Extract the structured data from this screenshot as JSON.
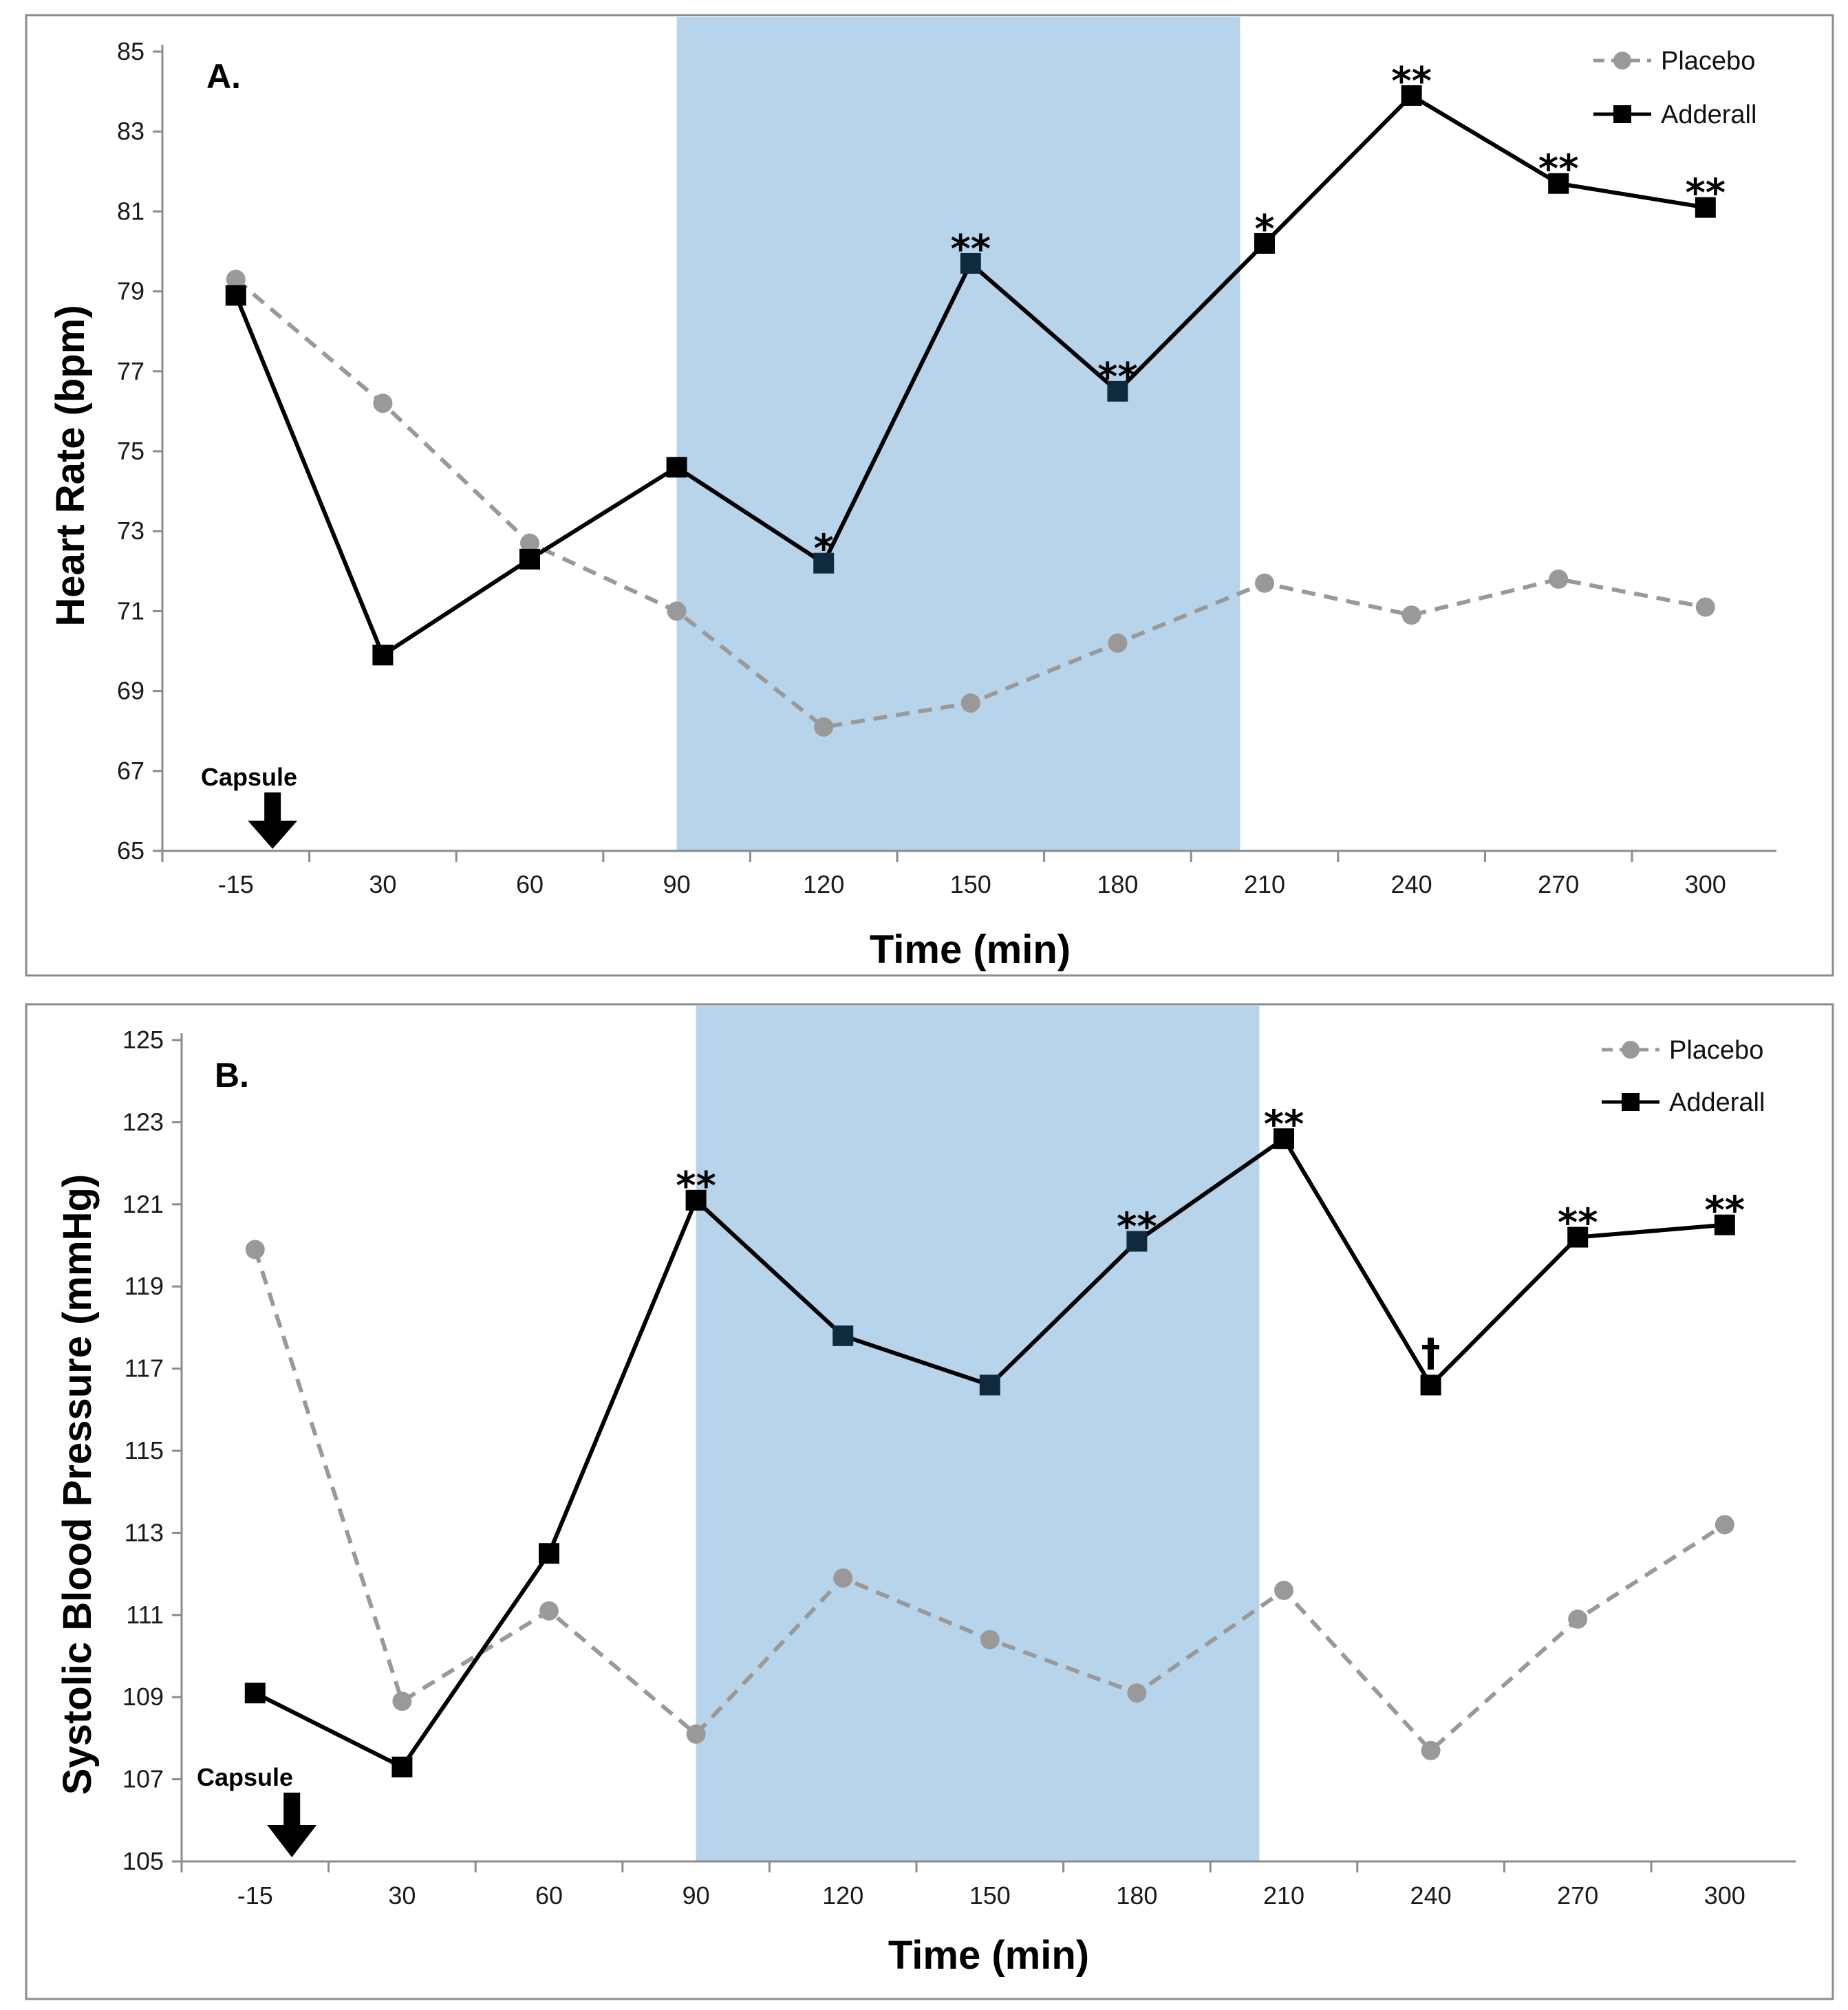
{
  "chart_data": [
    {
      "type": "line",
      "panel_label": "A.",
      "xlabel": "Time (min)",
      "ylabel": "Heart Rate (bpm)",
      "categories": [
        "-15",
        "30",
        "60",
        "90",
        "120",
        "150",
        "180",
        "210",
        "240",
        "270",
        "300"
      ],
      "ylim": [
        65,
        85
      ],
      "yticks": [
        65,
        67,
        69,
        71,
        73,
        75,
        77,
        79,
        81,
        83,
        85
      ],
      "shaded_region": [
        90,
        205
      ],
      "series": [
        {
          "name": "Placebo",
          "color": "#999999",
          "style": "dashed",
          "marker": "circle",
          "values": [
            79.3,
            76.2,
            72.7,
            71.0,
            68.1,
            68.7,
            70.2,
            71.7,
            70.9,
            71.8,
            71.1
          ]
        },
        {
          "name": "Adderall",
          "color": "#000000",
          "style": "solid",
          "marker": "square",
          "values": [
            78.9,
            69.9,
            72.3,
            74.6,
            72.2,
            79.7,
            76.5,
            80.2,
            83.9,
            81.7,
            81.1
          ]
        }
      ],
      "significance": [
        "",
        "",
        "",
        "",
        "*",
        "**",
        "**",
        "*",
        "**",
        "**",
        "**"
      ],
      "capsule_label": "Capsule",
      "capsule_x": 0
    },
    {
      "type": "line",
      "panel_label": "B.",
      "xlabel": "Time (min)",
      "ylabel": "Systolic Blood Pressure (mmHg)",
      "categories": [
        "-15",
        "30",
        "60",
        "90",
        "120",
        "150",
        "180",
        "210",
        "240",
        "270",
        "300"
      ],
      "ylim": [
        105,
        125
      ],
      "yticks": [
        105,
        107,
        109,
        111,
        113,
        115,
        117,
        119,
        121,
        123,
        125
      ],
      "shaded_region": [
        90,
        205
      ],
      "series": [
        {
          "name": "Placebo",
          "color": "#999999",
          "style": "dashed",
          "marker": "circle",
          "values": [
            119.9,
            108.9,
            111.1,
            108.1,
            111.9,
            110.4,
            109.1,
            111.6,
            107.7,
            110.9,
            113.2
          ]
        },
        {
          "name": "Adderall",
          "color": "#000000",
          "style": "solid",
          "marker": "square",
          "values": [
            109.1,
            107.3,
            112.5,
            121.1,
            117.8,
            116.6,
            120.1,
            122.6,
            116.6,
            120.2,
            120.5
          ]
        }
      ],
      "significance": [
        "",
        "",
        "",
        "**",
        "",
        "",
        "**",
        "**",
        "†",
        "**",
        "**"
      ],
      "capsule_label": "Capsule",
      "capsule_x": 0
    }
  ],
  "colors": {
    "shade": "#b8d4ea",
    "frame": "#8c8c8c"
  }
}
